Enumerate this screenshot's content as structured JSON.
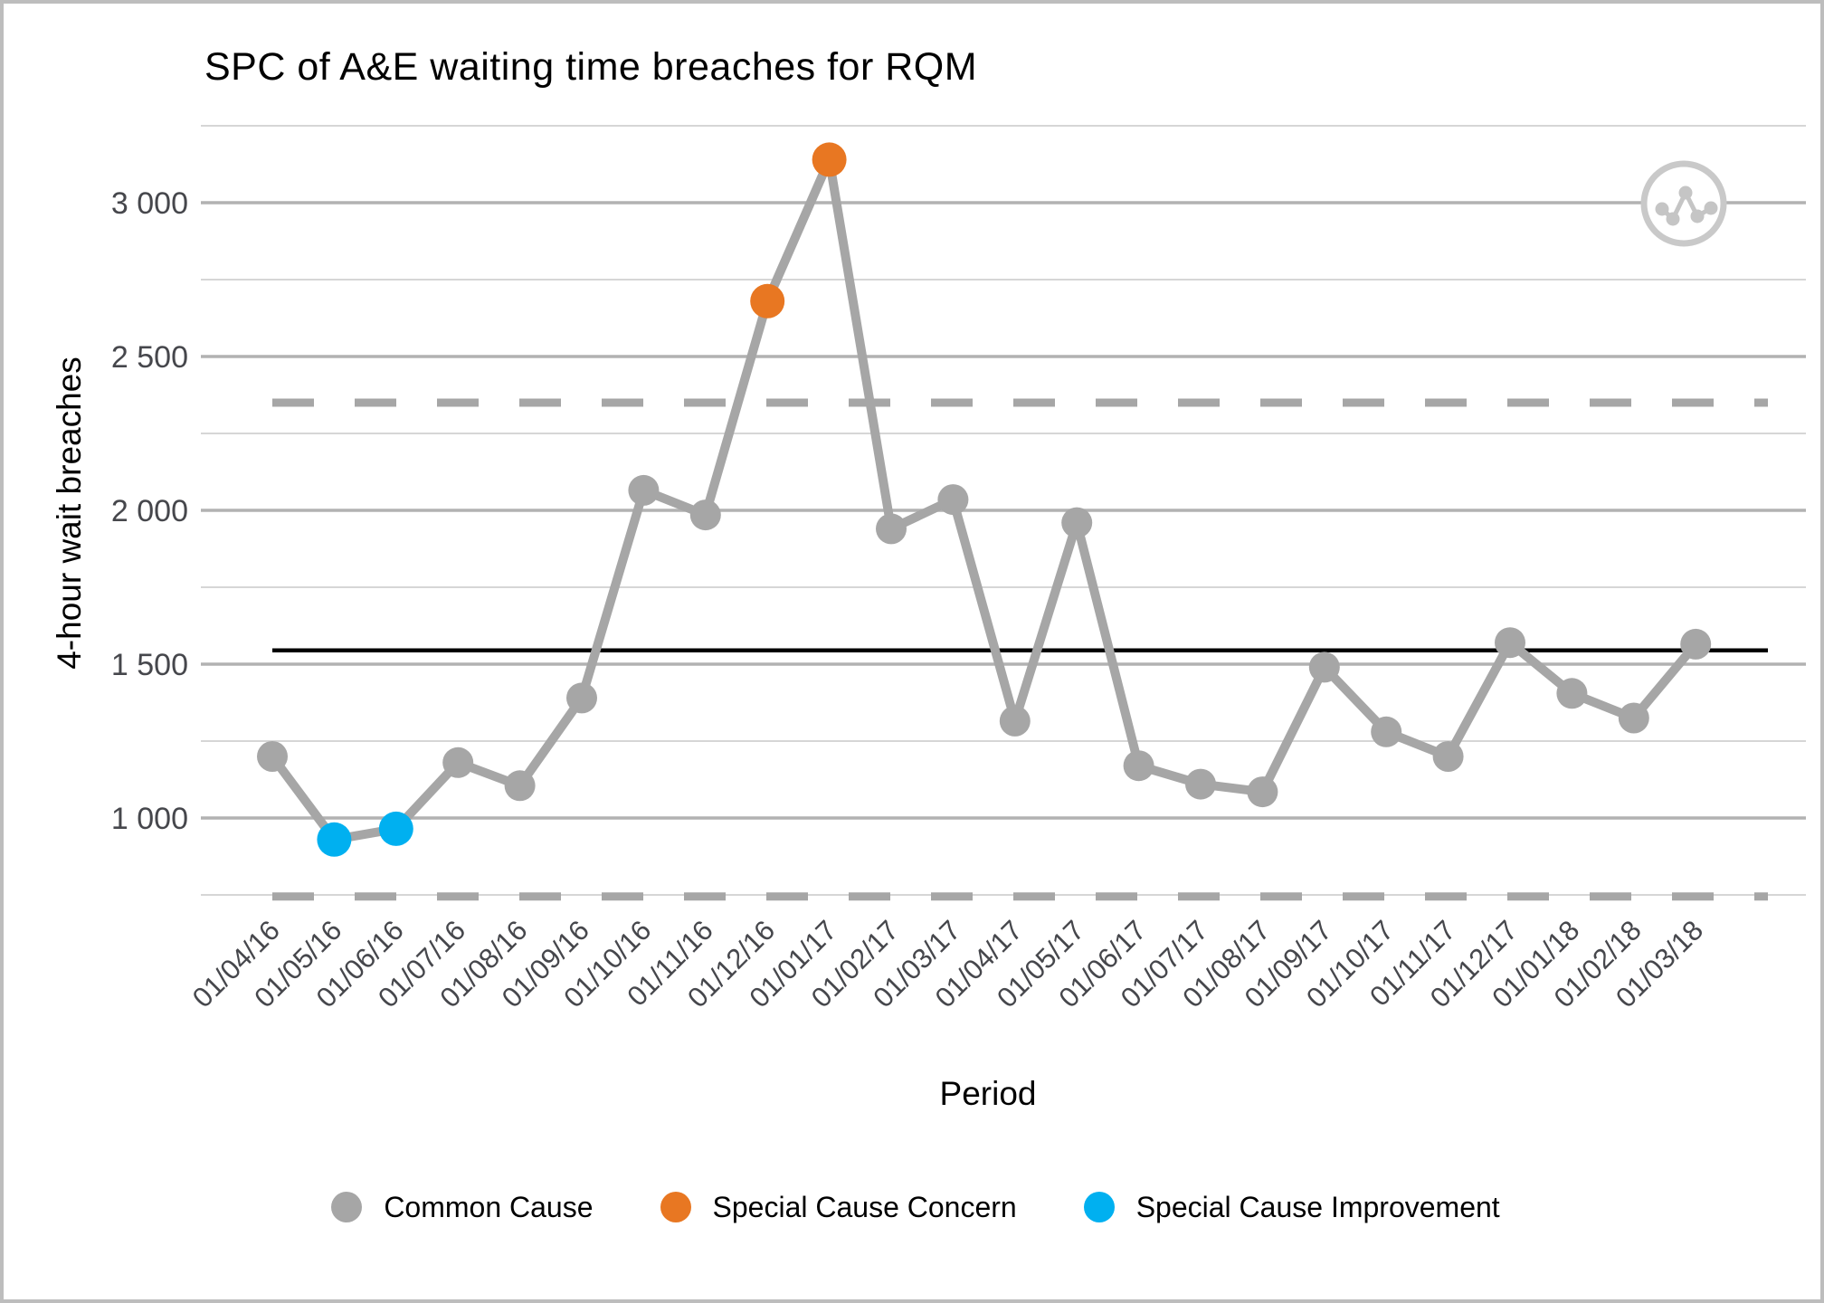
{
  "window": {
    "background": "#ffffff",
    "frame_border_color": "#bdbdbd"
  },
  "chart_data": {
    "type": "line",
    "subtype": "spc-control-chart",
    "title": "SPC of A&E waiting time breaches for RQM",
    "xlabel": "Period",
    "ylabel": "4-hour wait breaches",
    "x": [
      "01/04/16",
      "01/05/16",
      "01/06/16",
      "01/07/16",
      "01/08/16",
      "01/09/16",
      "01/10/16",
      "01/11/16",
      "01/12/16",
      "01/01/17",
      "01/02/17",
      "01/03/17",
      "01/04/17",
      "01/05/17",
      "01/06/17",
      "01/07/17",
      "01/08/17",
      "01/09/17",
      "01/10/17",
      "01/11/17",
      "01/12/17",
      "01/01/18",
      "01/02/18",
      "01/03/18"
    ],
    "series": [
      {
        "name": "4-hour wait breaches",
        "values": [
          1200,
          930,
          965,
          1180,
          1105,
          1390,
          2065,
          1985,
          2680,
          3140,
          1940,
          2035,
          1315,
          1960,
          1170,
          1110,
          1085,
          1490,
          1280,
          1200,
          1570,
          1405,
          1325,
          1565
        ],
        "point_classification": [
          "common",
          "improvement",
          "improvement",
          "common",
          "common",
          "common",
          "common",
          "common",
          "concern",
          "concern",
          "common",
          "common",
          "common",
          "common",
          "common",
          "common",
          "common",
          "common",
          "common",
          "common",
          "common",
          "common",
          "common",
          "common"
        ]
      }
    ],
    "mean_line": 1545,
    "upper_control_limit": 2350,
    "lower_control_limit": 745,
    "yticks_major": [
      1000,
      1500,
      2000,
      2500,
      3000
    ],
    "ytick_labels": [
      "1 000",
      "1 500",
      "2 000",
      "2 500",
      "3 000"
    ],
    "yticks_minor": [
      750,
      1250,
      1750,
      2250,
      2750,
      3250
    ],
    "ylim": [
      735,
      3265
    ],
    "grid": "horizontal-only",
    "legend_position": "bottom",
    "x_tick_rotation_deg": 45
  },
  "legend": {
    "items": [
      {
        "label": "Common Cause",
        "color": "#a6a6a6"
      },
      {
        "label": "Special Cause Concern",
        "color": "#e87722"
      },
      {
        "label": "Special Cause Improvement",
        "color": "#00b0f0"
      }
    ]
  },
  "colors": {
    "common": "#a6a6a6",
    "concern": "#e87722",
    "improvement": "#00b0f0",
    "series_line": "#a6a6a6",
    "mean_line": "#000000",
    "limit_line": "#a6a6a6",
    "grid_major": "#b2b2b2",
    "grid_minor": "#d6d6d6",
    "tick_text": "#46474c",
    "icon_circle": "#c9c9c9",
    "icon_glyph": "#c5c5c5"
  },
  "icon": {
    "name": "line-chart-icon"
  }
}
